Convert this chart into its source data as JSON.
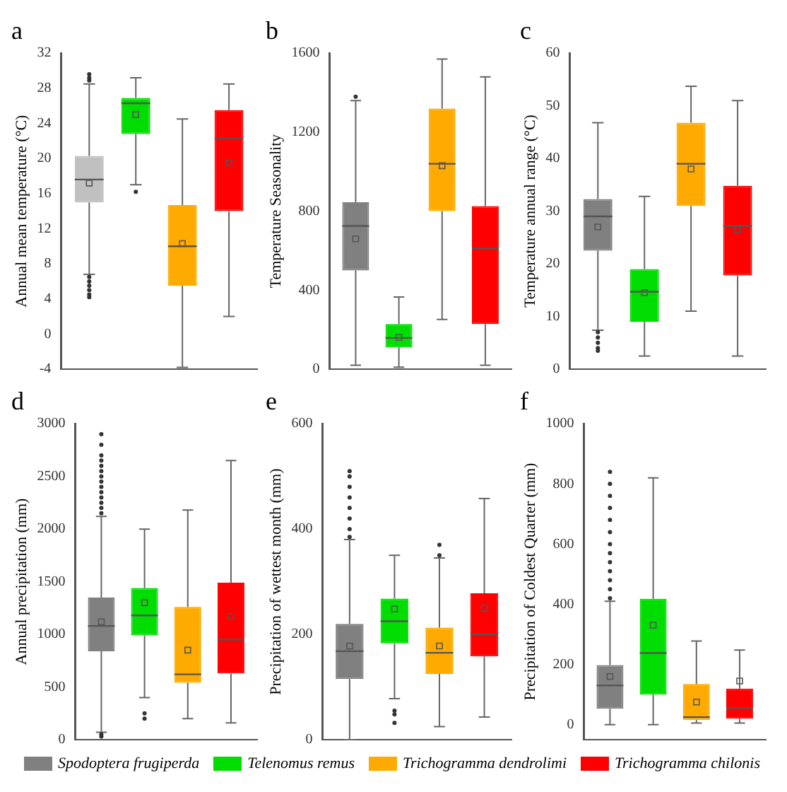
{
  "chart_data": [
    {
      "type": "box",
      "title": "a",
      "ylabel": "Annual mean temperature (°C)",
      "categories": [
        null
      ],
      "ylim": [
        -4,
        32
      ],
      "yticks": [
        -4,
        0,
        4,
        8,
        12,
        16,
        20,
        24,
        28,
        32
      ],
      "tick_labels": "y",
      "series": [
        {
          "color": "#c0c0c0",
          "boxes": [
            {
              "low": 6.8,
              "q1": 15,
              "median": 17.6,
              "q3": 20.3,
              "high": 28.5,
              "mean": 17.2,
              "outliers": [
                28.9,
                29.2,
                29.6,
                6.5,
                6,
                5.5,
                5,
                4.5,
                4.2
              ]
            }
          ]
        },
        {
          "color": "#00dd00",
          "boxes": [
            {
              "low": 17,
              "q1": 22.8,
              "median": 26.3,
              "q3": 26.9,
              "high": 29.2,
              "mean": 25,
              "outliers": [
                16.2
              ]
            }
          ]
        },
        {
          "color": "#ffaa00",
          "boxes": [
            {
              "low": -3.8,
              "q1": 5.5,
              "median": 10,
              "q3": 14.7,
              "high": 24.5,
              "mean": 10.3
            }
          ]
        },
        {
          "color": "#ff0000",
          "boxes": [
            {
              "low": 2,
              "q1": 14,
              "median": 22.3,
              "q3": 25.5,
              "high": 28.5,
              "mean": 19.5
            }
          ]
        }
      ]
    },
    {
      "type": "box",
      "title": "b",
      "ylabel": "Temperature Seasonality",
      "categories": [
        null
      ],
      "ylim": [
        0,
        1600
      ],
      "yticks": [
        0,
        400,
        800,
        1200,
        1600
      ],
      "tick_labels": "y",
      "series": [
        {
          "color": "#808080",
          "boxes": [
            {
              "low": 20,
              "q1": 500,
              "median": 725,
              "q3": 845,
              "high": 1360,
              "mean": 660,
              "outliers": [
                1380
              ]
            }
          ]
        },
        {
          "color": "#00dd00",
          "boxes": [
            {
              "low": 10,
              "q1": 110,
              "median": 158,
              "q3": 228,
              "high": 365,
              "mean": 160
            }
          ]
        },
        {
          "color": "#ffaa00",
          "boxes": [
            {
              "low": 252,
              "q1": 800,
              "median": 1040,
              "q3": 1320,
              "high": 1570,
              "mean": 1030
            }
          ]
        },
        {
          "color": "#ff0000",
          "boxes": [
            {
              "low": 20,
              "q1": 228,
              "median": 610,
              "q3": 825,
              "high": 1480
            }
          ]
        }
      ]
    },
    {
      "type": "box",
      "title": "c",
      "ylabel": "Temperature annual range (°C)",
      "categories": [
        null
      ],
      "ylim": [
        0,
        60
      ],
      "yticks": [
        0,
        10,
        20,
        30,
        40,
        50,
        60
      ],
      "tick_labels": "y",
      "series": [
        {
          "color": "#808080",
          "boxes": [
            {
              "low": 7.4,
              "q1": 22.5,
              "median": 29,
              "q3": 32.3,
              "high": 46.8,
              "mean": 27,
              "outliers": [
                7,
                6,
                5,
                4,
                3.5
              ]
            }
          ]
        },
        {
          "color": "#00dd00",
          "boxes": [
            {
              "low": 2.5,
              "q1": 9,
              "median": 14.7,
              "q3": 19,
              "high": 32.8,
              "mean": 14.5
            }
          ]
        },
        {
          "color": "#ffaa00",
          "boxes": [
            {
              "low": 11,
              "q1": 31,
              "median": 39,
              "q3": 46.8,
              "high": 53.7,
              "mean": 38
            }
          ]
        },
        {
          "color": "#ff0000",
          "boxes": [
            {
              "low": 2.5,
              "q1": 17.8,
              "median": 27.2,
              "q3": 34.8,
              "high": 51,
              "mean": 26.5
            }
          ]
        }
      ]
    },
    {
      "type": "box",
      "title": "d",
      "ylabel": "Annual precipitation (mm)",
      "categories": [
        null
      ],
      "ylim": [
        0,
        3000
      ],
      "yticks": [
        0,
        500,
        1000,
        1500,
        2000,
        2500,
        3000
      ],
      "tick_labels": "y",
      "series": [
        {
          "color": "#808080",
          "boxes": [
            {
              "low": 70,
              "q1": 840,
              "median": 1080,
              "q3": 1350,
              "high": 2120,
              "mean": 1120,
              "outliers": [
                2150,
                2200,
                2250,
                2300,
                2350,
                2400,
                2450,
                2500,
                2550,
                2600,
                2650,
                2700,
                2800,
                2900,
                50,
                30
              ]
            }
          ]
        },
        {
          "color": "#00dd00",
          "boxes": [
            {
              "low": 400,
              "q1": 990,
              "median": 1180,
              "q3": 1440,
              "high": 2000,
              "mean": 1300,
              "outliers": [
                250,
                200
              ]
            }
          ]
        },
        {
          "color": "#ffaa00",
          "boxes": [
            {
              "low": 200,
              "q1": 540,
              "median": 620,
              "q3": 1260,
              "high": 2180,
              "mean": 850
            }
          ]
        },
        {
          "color": "#ff0000",
          "boxes": [
            {
              "low": 160,
              "q1": 630,
              "median": 950,
              "q3": 1490,
              "high": 2650,
              "mean": 1170
            }
          ]
        }
      ]
    },
    {
      "type": "box",
      "title": "e",
      "ylabel": "Precipitation of wettest month (mm)",
      "categories": [
        null
      ],
      "ylim": [
        0,
        600
      ],
      "yticks": [
        0,
        200,
        400,
        600
      ],
      "tick_labels": "y",
      "series": [
        {
          "color": "#808080",
          "boxes": [
            {
              "low": 0,
              "q1": 115,
              "median": 168,
              "q3": 220,
              "high": 380,
              "mean": 178,
              "outliers": [
                385,
                400,
                420,
                440,
                460,
                480,
                500,
                510
              ]
            }
          ]
        },
        {
          "color": "#00dd00",
          "boxes": [
            {
              "low": 78,
              "q1": 183,
              "median": 225,
              "q3": 268,
              "high": 350,
              "mean": 248,
              "outliers": [
                55,
                48,
                32
              ]
            }
          ]
        },
        {
          "color": "#ffaa00",
          "boxes": [
            {
              "low": 25,
              "q1": 125,
              "median": 165,
              "q3": 213,
              "high": 345,
              "mean": 178,
              "outliers": [
                350,
                370
              ]
            }
          ]
        },
        {
          "color": "#ff0000",
          "boxes": [
            {
              "low": 43,
              "q1": 158,
              "median": 200,
              "q3": 278,
              "high": 458,
              "mean": 250
            }
          ]
        }
      ]
    },
    {
      "type": "box",
      "title": "f",
      "ylabel": "Precipitation of Coldest Quarter (mm)",
      "categories": [
        null
      ],
      "ylim": [
        -50,
        1000
      ],
      "yticks": [
        0,
        200,
        400,
        600,
        800,
        1000
      ],
      "tick_labels": "y",
      "legend": "bottom",
      "series": [
        {
          "name": "Spodoptera frugiperda",
          "color": "#808080",
          "boxes": [
            {
              "low": 0,
              "q1": 53,
              "median": 130,
              "q3": 198,
              "high": 410,
              "mean": 160,
              "outliers": [
                420,
                450,
                480,
                510,
                540,
                570,
                600,
                640,
                680,
                720,
                760,
                800,
                840
              ]
            }
          ]
        },
        {
          "name": "Telenomus remus",
          "color": "#00dd00",
          "boxes": [
            {
              "low": 0,
              "q1": 100,
              "median": 238,
              "q3": 418,
              "high": 820,
              "mean": 330
            }
          ]
        },
        {
          "name": "Trichogramma dendrolimi",
          "color": "#ffaa00",
          "boxes": [
            {
              "low": 5,
              "q1": 15,
              "median": 25,
              "q3": 135,
              "high": 278,
              "mean": 75
            }
          ]
        },
        {
          "name": "Trichogramma chilonis",
          "color": "#ff0000",
          "boxes": [
            {
              "low": 5,
              "q1": 20,
              "median": 55,
              "q3": 120,
              "high": 248,
              "mean": 145
            }
          ]
        }
      ]
    }
  ]
}
